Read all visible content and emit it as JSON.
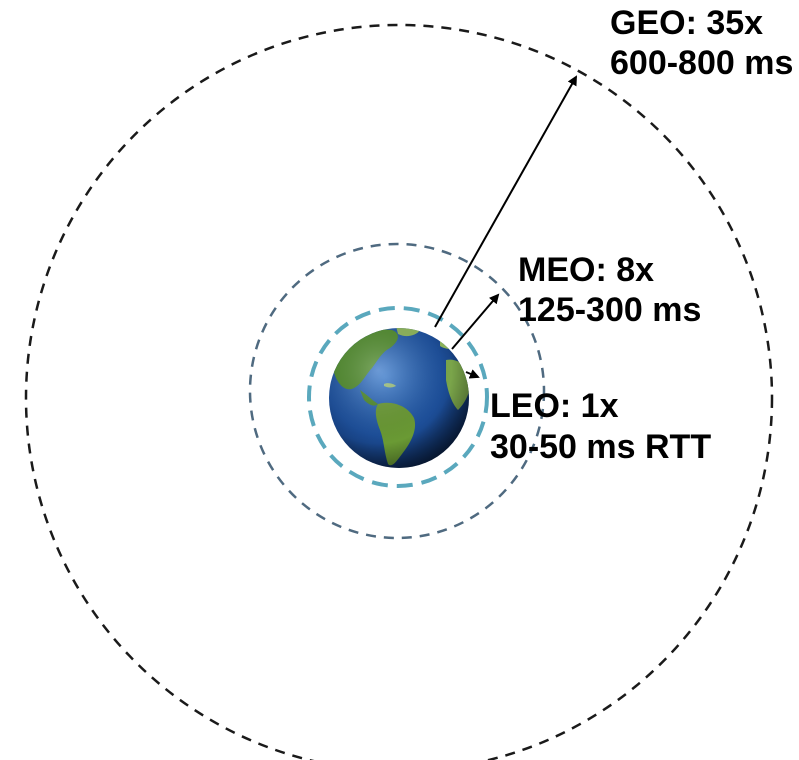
{
  "orbits": {
    "geo": {
      "line1": "GEO: 35x",
      "line2": "600-800 ms"
    },
    "meo": {
      "line1": "MEO: 8x",
      "line2": "125-300 ms"
    },
    "leo": {
      "line1": "LEO: 1x",
      "line2": "30-50 ms RTT"
    }
  },
  "colors": {
    "geo_orbit": "#1a1a1a",
    "meo_orbit": "#4f6a80",
    "leo_orbit": "#5aa8bd",
    "ocean": "#1d4f9a",
    "land": "#4f8a2c",
    "arrow": "#000000"
  }
}
